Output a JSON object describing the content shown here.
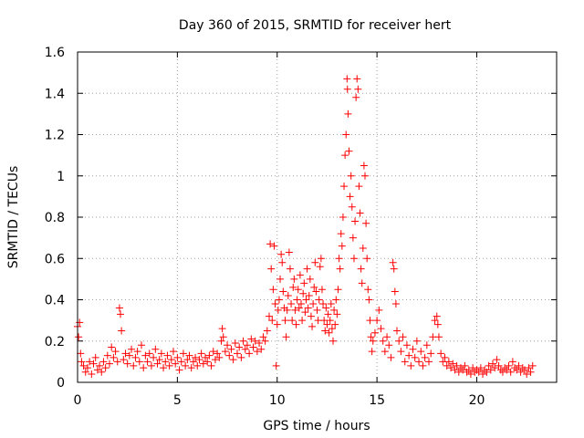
{
  "chart_data": {
    "type": "scatter",
    "title": "Day 360 of 2015, SRMTID for receiver hert",
    "xlabel": "GPS time / hours",
    "ylabel": "SRMTID / TECUs",
    "xlim": [
      0,
      24
    ],
    "ylim": [
      0,
      1.6
    ],
    "xticks": [
      0,
      5,
      10,
      15,
      20
    ],
    "xtick_labels": [
      "0",
      "5",
      "10",
      "15",
      "20"
    ],
    "yticks": [
      0,
      0.2,
      0.4,
      0.6,
      0.8,
      1.0,
      1.2,
      1.4,
      1.6
    ],
    "ytick_labels": [
      "0",
      "0.2",
      "0.4",
      "0.6",
      "0.8",
      "1",
      "1.2",
      "1.4",
      "1.6"
    ],
    "grid": true,
    "marker": "plus",
    "color": "#ff0000",
    "series": [
      {
        "name": "SRMTID",
        "points": [
          [
            0.0,
            0.27
          ],
          [
            0.05,
            0.22
          ],
          [
            0.1,
            0.29
          ],
          [
            0.15,
            0.14
          ],
          [
            0.2,
            0.1
          ],
          [
            0.3,
            0.08
          ],
          [
            0.4,
            0.05
          ],
          [
            0.5,
            0.07
          ],
          [
            0.6,
            0.1
          ],
          [
            0.7,
            0.04
          ],
          [
            0.8,
            0.09
          ],
          [
            0.9,
            0.12
          ],
          [
            1.0,
            0.06
          ],
          [
            1.1,
            0.08
          ],
          [
            1.2,
            0.05
          ],
          [
            1.3,
            0.1
          ],
          [
            1.4,
            0.07
          ],
          [
            1.5,
            0.13
          ],
          [
            1.6,
            0.09
          ],
          [
            1.7,
            0.17
          ],
          [
            1.8,
            0.12
          ],
          [
            1.9,
            0.15
          ],
          [
            2.0,
            0.1
          ],
          [
            2.1,
            0.36
          ],
          [
            2.15,
            0.33
          ],
          [
            2.2,
            0.25
          ],
          [
            2.3,
            0.11
          ],
          [
            2.4,
            0.14
          ],
          [
            2.5,
            0.09
          ],
          [
            2.6,
            0.13
          ],
          [
            2.7,
            0.16
          ],
          [
            2.8,
            0.08
          ],
          [
            2.9,
            0.12
          ],
          [
            3.0,
            0.15
          ],
          [
            3.1,
            0.1
          ],
          [
            3.2,
            0.18
          ],
          [
            3.3,
            0.07
          ],
          [
            3.4,
            0.13
          ],
          [
            3.5,
            0.1
          ],
          [
            3.6,
            0.14
          ],
          [
            3.7,
            0.08
          ],
          [
            3.8,
            0.12
          ],
          [
            3.9,
            0.16
          ],
          [
            4.0,
            0.09
          ],
          [
            4.1,
            0.11
          ],
          [
            4.2,
            0.14
          ],
          [
            4.3,
            0.07
          ],
          [
            4.4,
            0.1
          ],
          [
            4.5,
            0.13
          ],
          [
            4.6,
            0.08
          ],
          [
            4.7,
            0.11
          ],
          [
            4.8,
            0.15
          ],
          [
            4.9,
            0.09
          ],
          [
            5.0,
            0.12
          ],
          [
            5.1,
            0.06
          ],
          [
            5.2,
            0.1
          ],
          [
            5.3,
            0.14
          ],
          [
            5.4,
            0.08
          ],
          [
            5.5,
            0.11
          ],
          [
            5.6,
            0.13
          ],
          [
            5.7,
            0.07
          ],
          [
            5.8,
            0.1
          ],
          [
            5.9,
            0.12
          ],
          [
            6.0,
            0.08
          ],
          [
            6.1,
            0.11
          ],
          [
            6.2,
            0.14
          ],
          [
            6.3,
            0.09
          ],
          [
            6.4,
            0.12
          ],
          [
            6.5,
            0.1
          ],
          [
            6.6,
            0.13
          ],
          [
            6.7,
            0.08
          ],
          [
            6.8,
            0.15
          ],
          [
            6.9,
            0.11
          ],
          [
            7.0,
            0.14
          ],
          [
            7.1,
            0.12
          ],
          [
            7.2,
            0.2
          ],
          [
            7.25,
            0.26
          ],
          [
            7.3,
            0.22
          ],
          [
            7.4,
            0.15
          ],
          [
            7.5,
            0.18
          ],
          [
            7.6,
            0.13
          ],
          [
            7.7,
            0.16
          ],
          [
            7.8,
            0.11
          ],
          [
            7.9,
            0.19
          ],
          [
            8.0,
            0.14
          ],
          [
            8.1,
            0.17
          ],
          [
            8.2,
            0.12
          ],
          [
            8.3,
            0.2
          ],
          [
            8.4,
            0.16
          ],
          [
            8.5,
            0.18
          ],
          [
            8.6,
            0.14
          ],
          [
            8.7,
            0.21
          ],
          [
            8.8,
            0.17
          ],
          [
            8.9,
            0.2
          ],
          [
            9.0,
            0.15
          ],
          [
            9.1,
            0.19
          ],
          [
            9.2,
            0.16
          ],
          [
            9.3,
            0.22
          ],
          [
            9.4,
            0.2
          ],
          [
            9.5,
            0.25
          ],
          [
            9.6,
            0.32
          ],
          [
            9.65,
            0.67
          ],
          [
            9.7,
            0.55
          ],
          [
            9.75,
            0.3
          ],
          [
            9.8,
            0.45
          ],
          [
            9.85,
            0.66
          ],
          [
            9.9,
            0.38
          ],
          [
            9.95,
            0.08
          ],
          [
            10.0,
            0.28
          ],
          [
            10.05,
            0.35
          ],
          [
            10.1,
            0.4
          ],
          [
            10.15,
            0.5
          ],
          [
            10.2,
            0.62
          ],
          [
            10.25,
            0.58
          ],
          [
            10.3,
            0.44
          ],
          [
            10.35,
            0.36
          ],
          [
            10.4,
            0.3
          ],
          [
            10.45,
            0.22
          ],
          [
            10.5,
            0.35
          ],
          [
            10.55,
            0.42
          ],
          [
            10.6,
            0.63
          ],
          [
            10.65,
            0.55
          ],
          [
            10.7,
            0.38
          ],
          [
            10.75,
            0.3
          ],
          [
            10.8,
            0.46
          ],
          [
            10.85,
            0.5
          ],
          [
            10.9,
            0.35
          ],
          [
            10.95,
            0.28
          ],
          [
            11.0,
            0.4
          ],
          [
            11.05,
            0.45
          ],
          [
            11.1,
            0.36
          ],
          [
            11.15,
            0.52
          ],
          [
            11.2,
            0.38
          ],
          [
            11.25,
            0.3
          ],
          [
            11.3,
            0.43
          ],
          [
            11.35,
            0.48
          ],
          [
            11.4,
            0.34
          ],
          [
            11.45,
            0.4
          ],
          [
            11.5,
            0.55
          ],
          [
            11.55,
            0.36
          ],
          [
            11.6,
            0.42
          ],
          [
            11.65,
            0.5
          ],
          [
            11.7,
            0.32
          ],
          [
            11.75,
            0.27
          ],
          [
            11.8,
            0.38
          ],
          [
            11.85,
            0.46
          ],
          [
            11.9,
            0.58
          ],
          [
            11.95,
            0.44
          ],
          [
            12.0,
            0.35
          ],
          [
            12.05,
            0.3
          ],
          [
            12.1,
            0.4
          ],
          [
            12.15,
            0.56
          ],
          [
            12.2,
            0.6
          ],
          [
            12.25,
            0.45
          ],
          [
            12.3,
            0.38
          ],
          [
            12.35,
            0.3
          ],
          [
            12.4,
            0.25
          ],
          [
            12.45,
            0.36
          ],
          [
            12.5,
            0.28
          ],
          [
            12.55,
            0.33
          ],
          [
            12.6,
            0.24
          ],
          [
            12.65,
            0.3
          ],
          [
            12.7,
            0.38
          ],
          [
            12.75,
            0.26
          ],
          [
            12.8,
            0.2
          ],
          [
            12.85,
            0.35
          ],
          [
            12.9,
            0.28
          ],
          [
            12.95,
            0.4
          ],
          [
            13.0,
            0.33
          ],
          [
            13.05,
            0.45
          ],
          [
            13.1,
            0.6
          ],
          [
            13.15,
            0.55
          ],
          [
            13.2,
            0.72
          ],
          [
            13.25,
            0.66
          ],
          [
            13.3,
            0.8
          ],
          [
            13.35,
            0.95
          ],
          [
            13.4,
            1.1
          ],
          [
            13.45,
            1.2
          ],
          [
            13.5,
            1.47
          ],
          [
            13.52,
            1.42
          ],
          [
            13.55,
            1.3
          ],
          [
            13.6,
            1.12
          ],
          [
            13.65,
            0.9
          ],
          [
            13.7,
            1.0
          ],
          [
            13.75,
            0.85
          ],
          [
            13.8,
            0.7
          ],
          [
            13.85,
            0.6
          ],
          [
            13.9,
            0.78
          ],
          [
            13.95,
            1.38
          ],
          [
            14.0,
            1.47
          ],
          [
            14.05,
            1.42
          ],
          [
            14.1,
            0.95
          ],
          [
            14.15,
            0.82
          ],
          [
            14.2,
            0.55
          ],
          [
            14.25,
            0.48
          ],
          [
            14.3,
            0.65
          ],
          [
            14.35,
            1.05
          ],
          [
            14.4,
            1.0
          ],
          [
            14.45,
            0.77
          ],
          [
            14.5,
            0.6
          ],
          [
            14.55,
            0.45
          ],
          [
            14.6,
            0.4
          ],
          [
            14.65,
            0.3
          ],
          [
            14.7,
            0.22
          ],
          [
            14.75,
            0.15
          ],
          [
            14.8,
            0.2
          ],
          [
            14.9,
            0.24
          ],
          [
            15.0,
            0.3
          ],
          [
            15.1,
            0.35
          ],
          [
            15.2,
            0.26
          ],
          [
            15.3,
            0.2
          ],
          [
            15.4,
            0.15
          ],
          [
            15.5,
            0.22
          ],
          [
            15.6,
            0.18
          ],
          [
            15.7,
            0.12
          ],
          [
            15.8,
            0.58
          ],
          [
            15.85,
            0.55
          ],
          [
            15.9,
            0.44
          ],
          [
            15.95,
            0.38
          ],
          [
            16.0,
            0.25
          ],
          [
            16.1,
            0.2
          ],
          [
            16.2,
            0.15
          ],
          [
            16.3,
            0.22
          ],
          [
            16.4,
            0.1
          ],
          [
            16.5,
            0.18
          ],
          [
            16.6,
            0.13
          ],
          [
            16.7,
            0.08
          ],
          [
            16.8,
            0.16
          ],
          [
            16.9,
            0.12
          ],
          [
            17.0,
            0.2
          ],
          [
            17.1,
            0.1
          ],
          [
            17.2,
            0.15
          ],
          [
            17.3,
            0.08
          ],
          [
            17.4,
            0.12
          ],
          [
            17.5,
            0.18
          ],
          [
            17.6,
            0.1
          ],
          [
            17.7,
            0.14
          ],
          [
            17.8,
            0.22
          ],
          [
            17.9,
            0.3
          ],
          [
            18.0,
            0.32
          ],
          [
            18.05,
            0.28
          ],
          [
            18.1,
            0.22
          ],
          [
            18.2,
            0.14
          ],
          [
            18.3,
            0.1
          ],
          [
            18.4,
            0.12
          ],
          [
            18.5,
            0.08
          ],
          [
            18.6,
            0.1
          ],
          [
            18.7,
            0.07
          ],
          [
            18.8,
            0.09
          ],
          [
            18.9,
            0.06
          ],
          [
            19.0,
            0.08
          ],
          [
            19.1,
            0.05
          ],
          [
            19.2,
            0.07
          ],
          [
            19.3,
            0.06
          ],
          [
            19.4,
            0.08
          ],
          [
            19.5,
            0.05
          ],
          [
            19.6,
            0.06
          ],
          [
            19.7,
            0.04
          ],
          [
            19.8,
            0.07
          ],
          [
            19.9,
            0.05
          ],
          [
            20.0,
            0.06
          ],
          [
            20.1,
            0.05
          ],
          [
            20.2,
            0.07
          ],
          [
            20.3,
            0.04
          ],
          [
            20.4,
            0.06
          ],
          [
            20.5,
            0.05
          ],
          [
            20.6,
            0.08
          ],
          [
            20.7,
            0.06
          ],
          [
            20.8,
            0.09
          ],
          [
            20.9,
            0.07
          ],
          [
            21.0,
            0.11
          ],
          [
            21.1,
            0.08
          ],
          [
            21.2,
            0.06
          ],
          [
            21.3,
            0.05
          ],
          [
            21.4,
            0.07
          ],
          [
            21.5,
            0.06
          ],
          [
            21.6,
            0.08
          ],
          [
            21.7,
            0.05
          ],
          [
            21.8,
            0.1
          ],
          [
            21.9,
            0.07
          ],
          [
            22.0,
            0.06
          ],
          [
            22.1,
            0.08
          ],
          [
            22.2,
            0.05
          ],
          [
            22.3,
            0.07
          ],
          [
            22.4,
            0.06
          ],
          [
            22.5,
            0.04
          ],
          [
            22.6,
            0.07
          ],
          [
            22.7,
            0.05
          ],
          [
            22.8,
            0.08
          ]
        ]
      }
    ]
  }
}
